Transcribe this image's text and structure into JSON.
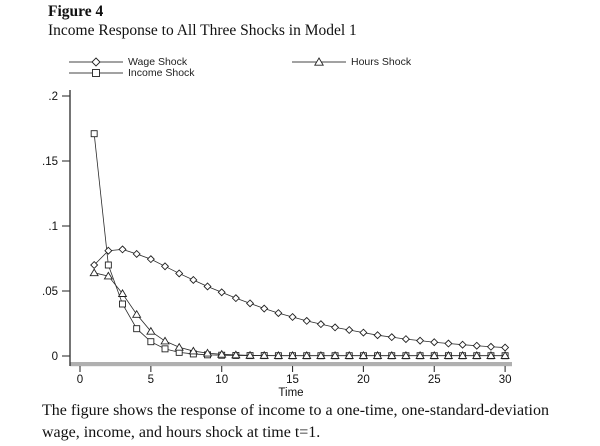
{
  "header": {
    "figure_label": "Figure 4",
    "title": "Income Response to All Three Shocks in Model 1"
  },
  "caption": {
    "line1": "The figure shows the response of income to a one-time, one-standard-deviation",
    "line2": "wage, income, and hours shock at time t=1."
  },
  "colors": {
    "line": "#2b2b2b",
    "axis": "#3a3a3a",
    "axis_band": "#b0b0b0",
    "marker_fill": "#ffffff",
    "text": "#111111"
  },
  "chart_data": {
    "type": "line",
    "title": "Income Response to All Three Shocks in Model 1",
    "xlabel": "Time",
    "ylabel": "",
    "xlim": [
      0,
      31
    ],
    "ylim": [
      0,
      0.205
    ],
    "grid": false,
    "legend_position": "top",
    "x_ticks": [
      0,
      5,
      10,
      15,
      20,
      25,
      30
    ],
    "y_ticks": [
      {
        "v": 0,
        "label": "0"
      },
      {
        "v": 0.05,
        "label": ".05"
      },
      {
        "v": 0.1,
        "label": ".1"
      },
      {
        "v": 0.15,
        "label": ".15"
      },
      {
        "v": 0.2,
        "label": ".2"
      }
    ],
    "x": [
      1,
      2,
      3,
      4,
      5,
      6,
      7,
      8,
      9,
      10,
      11,
      12,
      13,
      14,
      15,
      16,
      17,
      18,
      19,
      20,
      21,
      22,
      23,
      24,
      25,
      26,
      27,
      28,
      29,
      30
    ],
    "series": [
      {
        "name": "Wage Shock",
        "marker": "diamond",
        "values": [
          0.07,
          0.081,
          0.082,
          0.0785,
          0.0745,
          0.069,
          0.0635,
          0.0585,
          0.0535,
          0.049,
          0.0445,
          0.0405,
          0.0365,
          0.033,
          0.03,
          0.027,
          0.0245,
          0.022,
          0.02,
          0.018,
          0.016,
          0.0145,
          0.013,
          0.0118,
          0.0106,
          0.0096,
          0.0087,
          0.0079,
          0.0071,
          0.0065
        ]
      },
      {
        "name": "Income Shock",
        "marker": "square",
        "values": [
          0.171,
          0.07,
          0.04,
          0.021,
          0.011,
          0.0055,
          0.0028,
          0.0016,
          0.0009,
          0.0006,
          0.0004,
          0.0003,
          0.0003,
          0.0002,
          0.0002,
          0.0002,
          0.0002,
          0.0002,
          0.0002,
          0.0002,
          0.0002,
          0.0002,
          0.0002,
          0.0002,
          0.0002,
          0.0002,
          0.0002,
          0.0002,
          0.0002,
          0.0002
        ]
      },
      {
        "name": "Hours Shock",
        "marker": "triangle",
        "values": [
          0.064,
          0.0615,
          0.048,
          0.032,
          0.019,
          0.0115,
          0.0067,
          0.0038,
          0.0022,
          0.0013,
          0.0008,
          0.0005,
          0.0004,
          0.0003,
          0.0003,
          0.0003,
          0.0003,
          0.0003,
          0.0003,
          0.0003,
          0.0003,
          0.0003,
          0.0003,
          0.0003,
          0.0003,
          0.0003,
          0.0003,
          0.0003,
          0.0003,
          0.0003
        ]
      }
    ]
  }
}
